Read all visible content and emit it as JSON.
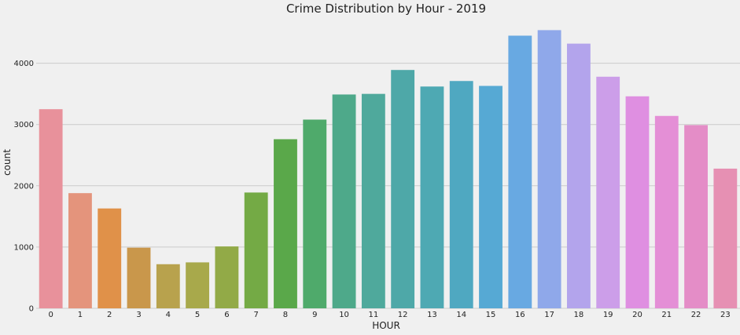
{
  "chart_data": {
    "type": "bar",
    "title": "Crime Distribution by Hour - 2019",
    "xlabel": "HOUR",
    "ylabel": "count",
    "categories": [
      "0",
      "1",
      "2",
      "3",
      "4",
      "5",
      "6",
      "7",
      "8",
      "9",
      "10",
      "11",
      "12",
      "13",
      "14",
      "15",
      "16",
      "17",
      "18",
      "19",
      "20",
      "21",
      "22",
      "23"
    ],
    "values": [
      3250,
      1880,
      1630,
      990,
      720,
      750,
      1010,
      1890,
      2760,
      3080,
      3490,
      3500,
      3890,
      3620,
      3710,
      3630,
      4450,
      4540,
      4320,
      3780,
      3460,
      3140,
      2990,
      2280
    ],
    "yticks": [
      0,
      1000,
      2000,
      3000,
      4000
    ],
    "ylim": [
      0,
      4700
    ],
    "grid": true,
    "colors": [
      "#e8919b",
      "#e4947c",
      "#e09149",
      "#c9974b",
      "#b8a24d",
      "#a8a94b",
      "#92aa47",
      "#74aa45",
      "#5aa84a",
      "#4faa6b",
      "#4ea98a",
      "#4fa99c",
      "#4ea8a8",
      "#4ea9b3",
      "#4fa8c1",
      "#56a9d4",
      "#68a9e2",
      "#8fa8ea",
      "#b3a4ec",
      "#cc9ee9",
      "#df8fe1",
      "#e48fd6",
      "#e48dc7",
      "#e690b3"
    ]
  }
}
